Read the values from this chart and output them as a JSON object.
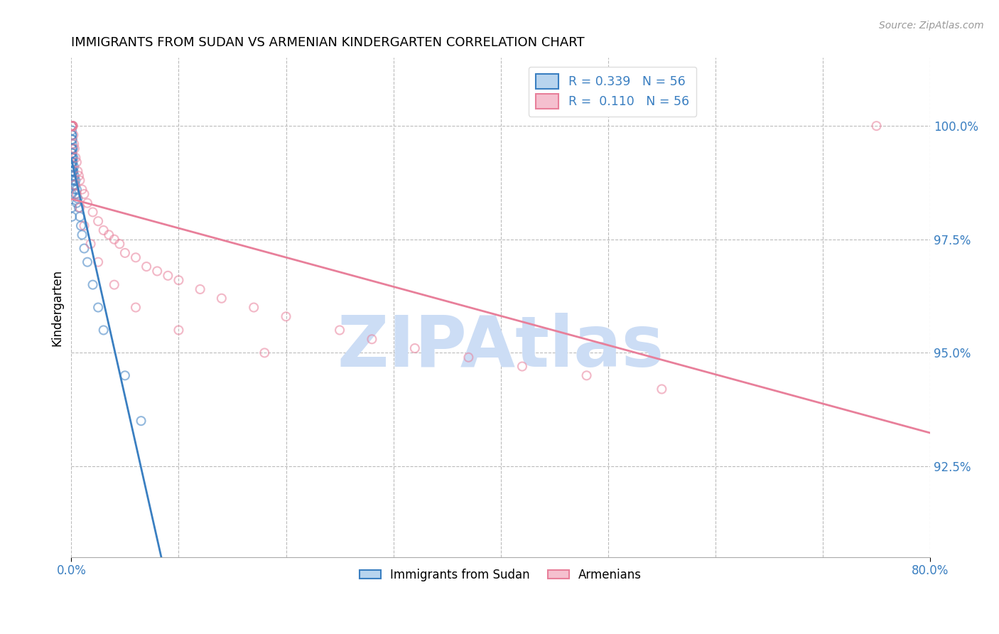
{
  "title": "IMMIGRANTS FROM SUDAN VS ARMENIAN KINDERGARTEN CORRELATION CHART",
  "source": "Source: ZipAtlas.com",
  "ylabel": "Kindergarten",
  "yticks": [
    92.5,
    95.0,
    97.5,
    100.0
  ],
  "ytick_labels": [
    "92.5%",
    "95.0%",
    "97.5%",
    "100.0%"
  ],
  "xmin": 0.0,
  "xmax": 80.0,
  "ymin": 90.5,
  "ymax": 101.5,
  "blue_dots_x": [
    0.05,
    0.05,
    0.05,
    0.05,
    0.05,
    0.05,
    0.05,
    0.05,
    0.05,
    0.05,
    0.05,
    0.05,
    0.05,
    0.05,
    0.05,
    0.08,
    0.08,
    0.08,
    0.08,
    0.08,
    0.1,
    0.1,
    0.1,
    0.1,
    0.1,
    0.15,
    0.15,
    0.15,
    0.2,
    0.2,
    0.2,
    0.25,
    0.25,
    0.3,
    0.3,
    0.35,
    0.4,
    0.4,
    0.5,
    0.5,
    0.6,
    0.7,
    0.8,
    0.9,
    1.0,
    1.2,
    1.5,
    2.0,
    2.5,
    3.0,
    5.0,
    6.5,
    0.05,
    0.05,
    0.05,
    0.05
  ],
  "blue_dots_y": [
    100.0,
    100.0,
    100.0,
    100.0,
    100.0,
    100.0,
    100.0,
    99.9,
    99.8,
    99.7,
    99.5,
    99.4,
    99.3,
    99.2,
    99.0,
    99.8,
    99.6,
    99.4,
    99.2,
    99.0,
    99.7,
    99.5,
    99.3,
    99.1,
    98.9,
    99.5,
    99.2,
    99.0,
    99.3,
    99.0,
    98.7,
    99.1,
    98.8,
    98.9,
    98.6,
    98.7,
    98.8,
    98.5,
    98.6,
    98.3,
    98.4,
    98.2,
    98.0,
    97.8,
    97.6,
    97.3,
    97.0,
    96.5,
    96.0,
    95.5,
    94.5,
    93.5,
    98.8,
    98.5,
    98.2,
    98.0
  ],
  "pink_dots_x": [
    0.05,
    0.05,
    0.05,
    0.05,
    0.05,
    0.08,
    0.08,
    0.1,
    0.1,
    0.15,
    0.15,
    0.2,
    0.25,
    0.3,
    0.4,
    0.5,
    0.6,
    0.7,
    0.8,
    1.0,
    1.2,
    1.5,
    2.0,
    2.5,
    3.0,
    3.5,
    4.0,
    4.5,
    5.0,
    6.0,
    7.0,
    8.0,
    9.0,
    10.0,
    12.0,
    14.0,
    17.0,
    20.0,
    25.0,
    28.0,
    32.0,
    37.0,
    42.0,
    48.0,
    55.0,
    75.0,
    0.3,
    0.5,
    0.8,
    1.2,
    1.8,
    2.5,
    4.0,
    6.0,
    10.0,
    18.0
  ],
  "pink_dots_y": [
    100.0,
    100.0,
    100.0,
    100.0,
    100.0,
    100.0,
    100.0,
    100.0,
    100.0,
    100.0,
    100.0,
    99.8,
    99.6,
    99.5,
    99.3,
    99.2,
    99.0,
    98.9,
    98.8,
    98.6,
    98.5,
    98.3,
    98.1,
    97.9,
    97.7,
    97.6,
    97.5,
    97.4,
    97.2,
    97.1,
    96.9,
    96.8,
    96.7,
    96.6,
    96.4,
    96.2,
    96.0,
    95.8,
    95.5,
    95.3,
    95.1,
    94.9,
    94.7,
    94.5,
    94.2,
    100.0,
    98.7,
    98.5,
    98.2,
    97.8,
    97.4,
    97.0,
    96.5,
    96.0,
    95.5,
    95.0
  ],
  "blue_line_color": "#3a7fc1",
  "pink_line_color": "#e87f9a",
  "dot_edgewidth": 1.5,
  "dot_size": 75,
  "dot_alpha": 0.55,
  "watermark_text": "ZIPAtlas",
  "watermark_color": "#ccddf5",
  "watermark_fontsize": 72,
  "grid_color": "#bbbbbb",
  "grid_linestyle": "--",
  "title_fontsize": 13,
  "tick_label_color": "#3a7fc1",
  "legend2_label1": "Immigrants from Sudan",
  "legend2_label2": "Armenians"
}
